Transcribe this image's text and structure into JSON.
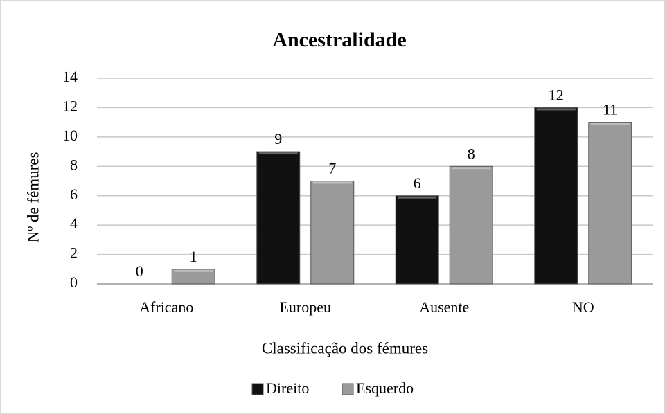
{
  "chart_data": {
    "type": "bar",
    "title": "Ancestralidade",
    "x_label": "Classificação dos fémures",
    "y_label": "Nº de fémures",
    "categories": [
      "Africano",
      "Europeu",
      "Ausente",
      "NO"
    ],
    "series": [
      {
        "name": "Direito",
        "color": "#111111",
        "values": [
          0,
          9,
          6,
          12
        ]
      },
      {
        "name": "Esquerdo",
        "color": "#9a9a9a",
        "values": [
          1,
          7,
          8,
          11
        ]
      }
    ],
    "ylim": [
      0,
      14
    ],
    "yticks": [
      0,
      2,
      4,
      6,
      8,
      10,
      12,
      14
    ],
    "grid": true,
    "legend": "bottom"
  }
}
